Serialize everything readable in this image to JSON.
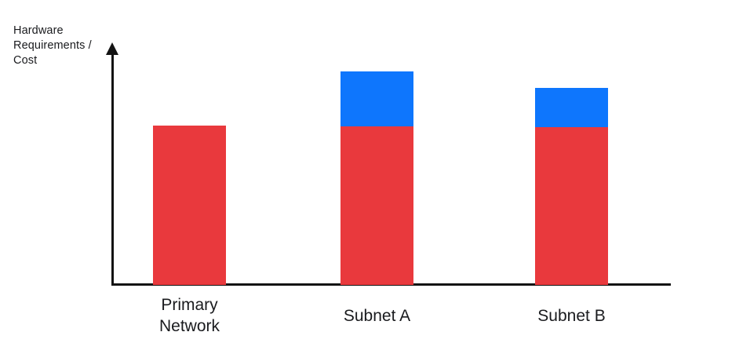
{
  "chart_data": {
    "type": "bar",
    "stacked": true,
    "title": "",
    "xlabel": "",
    "ylabel": "Hardware Requirements / Cost",
    "categories": [
      "Primary Network",
      "Subnet A",
      "Subnet B"
    ],
    "series": [
      {
        "name": "red",
        "color": "#E9393D",
        "values": [
          203,
          202,
          201
        ]
      },
      {
        "name": "blue",
        "color": "#0E76FD",
        "values": [
          0,
          70,
          50
        ]
      }
    ],
    "value_scale": "relative (no numeric ticks shown on axis)",
    "y_axis_ticks": [],
    "x_axis_ticks": [],
    "grid": false,
    "legend": false,
    "y_axis_arrow": true,
    "x_axis_arrow": false
  },
  "colors": {
    "bar_red": "#E9393D",
    "bar_blue": "#0E76FD",
    "axis": "#131313",
    "text": "#1A1B1E",
    "background": "#FFFFFF"
  }
}
